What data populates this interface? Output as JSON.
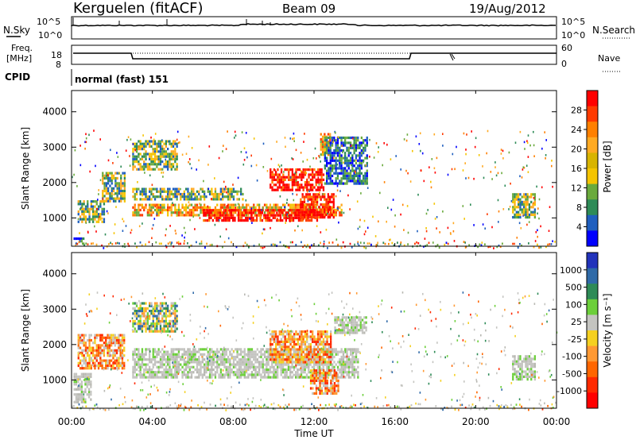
{
  "header": {
    "station": "Kerguelen (fitACF)",
    "beam": "Beam 09",
    "date": "19/Aug/2012"
  },
  "nsky_panel": {
    "left_label": "N.Sky",
    "right_label": "N.Search",
    "left_ticks": [
      "10^5",
      "10^0"
    ],
    "right_ticks": [
      "10^5",
      "10^0"
    ]
  },
  "freq_panel": {
    "left_label_1": "Freq.",
    "left_label_2": "[MHz]",
    "right_label": "Nave",
    "left_ticks": [
      "18",
      "8"
    ],
    "right_ticks": [
      "60",
      "0"
    ]
  },
  "cpid": {
    "label": "CPID",
    "value": "normal (fast) 151"
  },
  "chart_data": [
    {
      "type": "heatmap",
      "title": "",
      "xlabel": "",
      "ylabel": "Slant Range [km]",
      "y_ticks": [
        "4000",
        "3000",
        "2000",
        "1000"
      ],
      "ylim": [
        200,
        4600
      ],
      "xlim_hours": [
        0,
        24
      ],
      "colorbar": {
        "label": "Power [dB]",
        "ticks": [
          "28",
          "24",
          "20",
          "16",
          "12",
          "8",
          "4"
        ],
        "colors": [
          "#ff0000",
          "#ff3a00",
          "#ff8000",
          "#ffaa22",
          "#d8b400",
          "#f5c400",
          "#6aaa3c",
          "#2e8b57",
          "#1f5fbf",
          "#0000ff"
        ]
      },
      "regions": [
        {
          "t0": 0.1,
          "t1": 0.6,
          "r0": 300,
          "r1": 450,
          "value": "low"
        },
        {
          "t0": 0.3,
          "t1": 1.6,
          "r0": 900,
          "r1": 1500,
          "value": "mid"
        },
        {
          "t0": 1.5,
          "t1": 2.6,
          "r0": 1500,
          "r1": 2300,
          "value": "mid"
        },
        {
          "t0": 3.0,
          "t1": 5.2,
          "r0": 2400,
          "r1": 3200,
          "value": "mid"
        },
        {
          "t0": 3.0,
          "t1": 13.4,
          "r0": 1100,
          "r1": 1400,
          "value": "high"
        },
        {
          "t0": 3.0,
          "t1": 8.5,
          "r0": 1500,
          "r1": 1850,
          "value": "mid"
        },
        {
          "t0": 6.5,
          "t1": 12.2,
          "r0": 950,
          "r1": 1250,
          "value": "max"
        },
        {
          "t0": 9.8,
          "t1": 12.5,
          "r0": 1800,
          "r1": 2400,
          "value": "max"
        },
        {
          "t0": 11.3,
          "t1": 13.0,
          "r0": 1000,
          "r1": 1700,
          "value": "max"
        },
        {
          "t0": 12.3,
          "t1": 12.8,
          "r0": 2800,
          "r1": 3400,
          "value": "high"
        },
        {
          "t0": 12.5,
          "t1": 14.6,
          "r0": 2000,
          "r1": 3300,
          "value": "low"
        },
        {
          "t0": 21.8,
          "t1": 22.9,
          "r0": 1000,
          "r1": 1700,
          "value": "mid"
        }
      ]
    },
    {
      "type": "heatmap",
      "title": "",
      "xlabel": "Time UT",
      "ylabel": "Slant Range [km]",
      "y_ticks": [
        "4000",
        "3000",
        "2000",
        "1000"
      ],
      "ylim": [
        200,
        4600
      ],
      "x_ticks": [
        "00:00",
        "04:00",
        "08:00",
        "12:00",
        "16:00",
        "20:00",
        "00:00"
      ],
      "xlim_hours": [
        0,
        24
      ],
      "colorbar": {
        "label": "Velocity [m s⁻¹]",
        "ticks": [
          "1000",
          "500",
          "100",
          "25",
          "-25",
          "-100",
          "-500",
          "-1000"
        ],
        "colors": [
          "#2233bb",
          "#2f6aa8",
          "#2e8b57",
          "#6ccf3a",
          "#c4c4c0",
          "#f5d020",
          "#ff9933",
          "#ff6600",
          "#ff2a00",
          "#ff0000"
        ]
      },
      "regions": [
        {
          "t0": 0.1,
          "t1": 1.0,
          "r0": 400,
          "r1": 1200,
          "value": "ground"
        },
        {
          "t0": 0.3,
          "t1": 2.6,
          "r0": 1300,
          "r1": 2300,
          "value": "neg"
        },
        {
          "t0": 3.0,
          "t1": 5.2,
          "r0": 2400,
          "r1": 3200,
          "value": "mixed"
        },
        {
          "t0": 3.0,
          "t1": 14.2,
          "r0": 1100,
          "r1": 1900,
          "value": "ground"
        },
        {
          "t0": 9.8,
          "t1": 12.8,
          "r0": 1500,
          "r1": 2400,
          "value": "neg"
        },
        {
          "t0": 11.8,
          "t1": 13.2,
          "r0": 600,
          "r1": 1300,
          "value": "neg"
        },
        {
          "t0": 13.0,
          "t1": 14.6,
          "r0": 2300,
          "r1": 2800,
          "value": "ground"
        },
        {
          "t0": 21.8,
          "t1": 22.9,
          "r0": 1000,
          "r1": 1700,
          "value": "ground"
        }
      ]
    }
  ]
}
